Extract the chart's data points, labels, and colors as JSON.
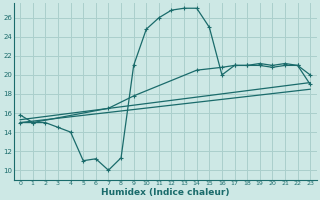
{
  "xlabel": "Humidex (Indice chaleur)",
  "xlim": [
    -0.5,
    23.5
  ],
  "ylim": [
    9,
    27.5
  ],
  "xticks": [
    0,
    1,
    2,
    3,
    4,
    5,
    6,
    7,
    8,
    9,
    10,
    11,
    12,
    13,
    14,
    15,
    16,
    17,
    18,
    19,
    20,
    21,
    22,
    23
  ],
  "yticks": [
    10,
    12,
    14,
    16,
    18,
    20,
    22,
    24,
    26
  ],
  "background_color": "#cde8e5",
  "grid_color": "#aacfcc",
  "line_color": "#1a6b6b",
  "curve1_x": [
    0,
    1,
    2,
    3,
    4,
    5,
    6,
    7,
    8,
    9,
    10,
    11,
    12,
    13,
    14,
    15,
    16,
    17,
    18,
    19,
    20,
    21,
    22,
    23
  ],
  "curve1_y": [
    15.8,
    15.0,
    15.0,
    14.5,
    14.0,
    11.0,
    11.2,
    10.0,
    11.3,
    21.0,
    24.8,
    26.0,
    26.8,
    27.0,
    27.0,
    25.0,
    20.0,
    21.0,
    21.0,
    21.0,
    20.8,
    21.0,
    21.0,
    20.0
  ],
  "curve2_x": [
    0,
    1,
    7,
    9,
    14,
    16,
    17,
    18,
    19,
    20,
    21,
    22,
    23
  ],
  "curve2_y": [
    15.0,
    15.0,
    16.5,
    17.8,
    20.5,
    20.8,
    21.0,
    21.0,
    21.2,
    21.0,
    21.2,
    21.0,
    19.0
  ],
  "line1_x": [
    0,
    23
  ],
  "line1_y": [
    15.0,
    18.5
  ],
  "line2_x": [
    0,
    23
  ],
  "line2_y": [
    15.3,
    19.2
  ]
}
